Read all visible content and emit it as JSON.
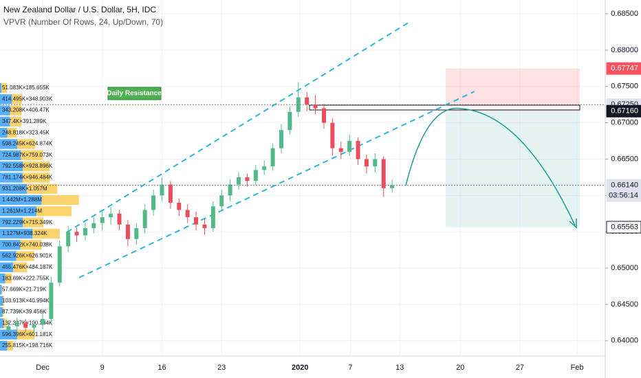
{
  "chart_data": {
    "type": "candlestick",
    "title": "New Zealand Dollar / U.S. Dollar, 5H, IDC",
    "subtitle": "VPVR (Number Of Rows, 24, Up/Down, 70)",
    "annotation": "Daily Resistance",
    "up_color": "#53b987",
    "down_color": "#eb4d5c",
    "xlim": [
      -5,
      66
    ],
    "xticks": [
      {
        "value": 0,
        "label": "Dec"
      },
      {
        "value": 7,
        "label": "9"
      },
      {
        "value": 14,
        "label": "16"
      },
      {
        "value": 21,
        "label": "23"
      },
      {
        "value": 30.2,
        "label": "2020"
      },
      {
        "value": 36.1,
        "label": "7"
      },
      {
        "value": 41.9,
        "label": "13"
      },
      {
        "value": 49,
        "label": "20"
      },
      {
        "value": 56,
        "label": "27"
      },
      {
        "value": 62.7,
        "label": "Feb"
      }
    ],
    "ylim": [
      0.6379,
      0.6869
    ],
    "yticks": [
      {
        "value": 0.685,
        "label": "0.68500"
      },
      {
        "value": 0.68,
        "label": "0.68000"
      },
      {
        "value": 0.675,
        "label": "0.67500"
      },
      {
        "value": 0.67,
        "label": "0.67000"
      },
      {
        "value": 0.665,
        "label": "0.66500"
      },
      {
        "value": 0.66,
        "label": "0.66000"
      },
      {
        "value": 0.655,
        "label": "0.65500"
      },
      {
        "value": 0.65,
        "label": "0.65000"
      },
      {
        "value": 0.645,
        "label": "0.64500"
      },
      {
        "value": 0.64,
        "label": "0.64000"
      }
    ],
    "price_markers": [
      {
        "value": 0.67747,
        "label": "0.67747",
        "color": "#f7525f",
        "text_color": "#ffffff"
      },
      {
        "value": 0.6725,
        "label": "0.67250",
        "color": "#e0e3eb",
        "text_color": "#131722",
        "line": true
      },
      {
        "value": 0.6716,
        "label": "0.67160",
        "color": "#131722",
        "text_color": "#ffffff"
      },
      {
        "value": 0.6614,
        "label": "0.66140",
        "sublabel": "03:56:14",
        "color": "#e0e3eb",
        "text_color": "#131722",
        "line": true
      },
      {
        "value": 0.65563,
        "label": "0.65563",
        "color": "#ffffff",
        "text_color": "#131722"
      }
    ],
    "x": [
      -4,
      -3,
      -2,
      -1,
      0,
      1,
      2,
      3,
      4,
      5,
      6,
      7,
      8,
      9,
      10,
      11,
      12,
      13,
      14,
      15,
      16,
      17,
      18,
      19,
      20,
      21,
      22,
      23,
      24,
      25,
      26,
      27,
      28,
      29,
      30,
      31,
      32,
      33,
      34,
      35,
      36,
      37,
      38,
      39,
      40,
      41
    ],
    "ohlc": [
      [
        0.6415,
        0.6428,
        0.641,
        0.642
      ],
      [
        0.642,
        0.6432,
        0.6415,
        0.6425
      ],
      [
        0.6425,
        0.643,
        0.6412,
        0.6418
      ],
      [
        0.6418,
        0.6428,
        0.641,
        0.6422
      ],
      [
        0.6422,
        0.6438,
        0.6416,
        0.643
      ],
      [
        0.643,
        0.6488,
        0.6425,
        0.648
      ],
      [
        0.648,
        0.6538,
        0.6475,
        0.653
      ],
      [
        0.653,
        0.6558,
        0.6522,
        0.655
      ],
      [
        0.655,
        0.6556,
        0.6536,
        0.6545
      ],
      [
        0.6545,
        0.6563,
        0.6538,
        0.6555
      ],
      [
        0.6555,
        0.657,
        0.6548,
        0.6562
      ],
      [
        0.6562,
        0.6578,
        0.6552,
        0.657
      ],
      [
        0.657,
        0.6584,
        0.656,
        0.6575
      ],
      [
        0.6575,
        0.658,
        0.6552,
        0.656
      ],
      [
        0.656,
        0.6566,
        0.653,
        0.654
      ],
      [
        0.654,
        0.6562,
        0.6532,
        0.6555
      ],
      [
        0.6555,
        0.6588,
        0.6548,
        0.658
      ],
      [
        0.658,
        0.6608,
        0.6572,
        0.66
      ],
      [
        0.66,
        0.6625,
        0.6592,
        0.6615
      ],
      [
        0.6615,
        0.662,
        0.6582,
        0.659
      ],
      [
        0.659,
        0.6596,
        0.6572,
        0.658
      ],
      [
        0.658,
        0.6588,
        0.6562,
        0.657
      ],
      [
        0.657,
        0.6578,
        0.6552,
        0.656
      ],
      [
        0.656,
        0.6568,
        0.6546,
        0.6555
      ],
      [
        0.6555,
        0.6592,
        0.655,
        0.6585
      ],
      [
        0.6585,
        0.6608,
        0.6578,
        0.66
      ],
      [
        0.66,
        0.6622,
        0.6592,
        0.6615
      ],
      [
        0.6615,
        0.6632,
        0.6608,
        0.6625
      ],
      [
        0.6625,
        0.663,
        0.6612,
        0.662
      ],
      [
        0.662,
        0.6642,
        0.6614,
        0.6635
      ],
      [
        0.6635,
        0.6648,
        0.6628,
        0.664
      ],
      [
        0.664,
        0.6672,
        0.6634,
        0.6665
      ],
      [
        0.6665,
        0.6698,
        0.6658,
        0.669
      ],
      [
        0.669,
        0.6722,
        0.6684,
        0.6715
      ],
      [
        0.6715,
        0.6756,
        0.6708,
        0.6735
      ],
      [
        0.6735,
        0.6742,
        0.6716,
        0.6725
      ],
      [
        0.6725,
        0.6738,
        0.6712,
        0.672
      ],
      [
        0.672,
        0.6726,
        0.6692,
        0.67
      ],
      [
        0.67,
        0.6706,
        0.6655,
        0.6665
      ],
      [
        0.6665,
        0.6674,
        0.665,
        0.666
      ],
      [
        0.666,
        0.6684,
        0.6654,
        0.6675
      ],
      [
        0.6675,
        0.668,
        0.6642,
        0.665
      ],
      [
        0.665,
        0.6656,
        0.663,
        0.664
      ],
      [
        0.664,
        0.6658,
        0.6632,
        0.665
      ],
      [
        0.665,
        0.6654,
        0.6598,
        0.661
      ],
      [
        0.661,
        0.6622,
        0.6604,
        0.6614
      ]
    ],
    "profile": [
      {
        "label": "51.083K×185.655K",
        "up": 51.083,
        "down": 185.655
      },
      {
        "label": "414.495K×348.903K",
        "up": 414.495,
        "down": 348.903
      },
      {
        "label": "343.208K×406.47K",
        "up": 343.208,
        "down": 406.47
      },
      {
        "label": "347.4K×391.289K",
        "up": 347.4,
        "down": 391.289
      },
      {
        "label": "248.818K×323.45K",
        "up": 248.818,
        "down": 323.45
      },
      {
        "label": "598.245K×624.874K",
        "up": 598.245,
        "down": 624.874
      },
      {
        "label": "724.987K×759.073K",
        "up": 724.987,
        "down": 759.073
      },
      {
        "label": "792.558K×928.896K",
        "up": 792.558,
        "down": 928.896
      },
      {
        "label": "781.174K×946.484K",
        "up": 781.174,
        "down": 946.484
      },
      {
        "label": "931.208K×1.057M",
        "up": 931.208,
        "down": 1057
      },
      {
        "label": "1.442M×1.288M",
        "up": 1442,
        "down": 1288
      },
      {
        "label": "1.261M×1.214M",
        "up": 1261,
        "down": 1214
      },
      {
        "label": "792.229K×715.349K",
        "up": 792.229,
        "down": 715.349
      },
      {
        "label": "1.127M×938.324K",
        "up": 1127,
        "down": 938.324
      },
      {
        "label": "700.842K×740.038K",
        "up": 700.842,
        "down": 740.038
      },
      {
        "label": "562.926K×626.901K",
        "up": 562.926,
        "down": 626.901
      },
      {
        "label": "455.476K×484.187K",
        "up": 455.476,
        "down": 484.187
      },
      {
        "label": "183.69K×222.755K",
        "up": 183.69,
        "down": 222.755
      },
      {
        "label": "57.669K×21.719K",
        "up": 57.669,
        "down": 21.719
      },
      {
        "label": "103.913K×40.994K",
        "up": 103.913,
        "down": 40.994
      },
      {
        "label": "87.739K×39.456K",
        "up": 87.739,
        "down": 39.456
      },
      {
        "label": "132.337K×100.304K",
        "up": 132.337,
        "down": 100.304
      },
      {
        "label": "596.396K×601.181K",
        "up": 596.396,
        "down": 601.181
      },
      {
        "label": "255.815K×198.716K",
        "up": 255.815,
        "down": 198.716
      }
    ]
  }
}
